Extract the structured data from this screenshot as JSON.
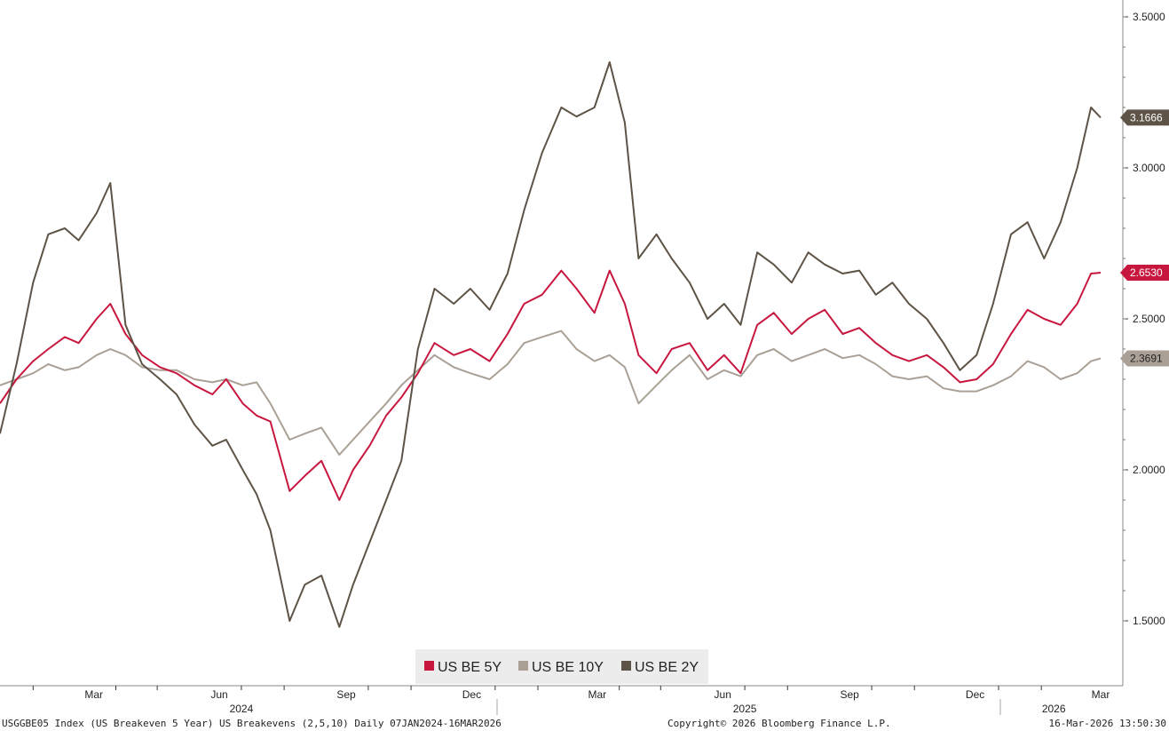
{
  "footer": {
    "left": "USGGBE05 Index (US Breakeven 5 Year) US Breakevens (2,5,10) Daily 07JAN2024-16MAR2026",
    "center": "Copyright© 2026 Bloomberg Finance L.P.",
    "right": "16-Mar-2026 13:50:30"
  },
  "chart_data": {
    "type": "line",
    "title": "",
    "xlabel": "",
    "ylabel": "",
    "x_range": [
      "2024-01-08",
      "2026-03-16"
    ],
    "ylim": [
      1.4,
      3.55
    ],
    "y_ticks": [
      "1.5000",
      "2.0000",
      "2.5000",
      "3.0000",
      "3.5000"
    ],
    "x_month_ticks": [
      "Mar",
      "Jun",
      "Sep",
      "Dec",
      "Mar",
      "Jun",
      "Sep",
      "Dec",
      "Mar"
    ],
    "x_year_labels": [
      "2024",
      "2025",
      "2026"
    ],
    "grid": false,
    "legend_position": "bottom-center",
    "series": [
      {
        "name": "US BE 5Y",
        "color": "#c8173f",
        "last_value": "2.6530",
        "points": [
          [
            "2024-01-08",
            2.22
          ],
          [
            "2024-01-20",
            2.3
          ],
          [
            "2024-02-01",
            2.36
          ],
          [
            "2024-02-12",
            2.4
          ],
          [
            "2024-02-24",
            2.44
          ],
          [
            "2024-03-05",
            2.42
          ],
          [
            "2024-03-18",
            2.5
          ],
          [
            "2024-03-28",
            2.55
          ],
          [
            "2024-04-08",
            2.45
          ],
          [
            "2024-04-20",
            2.38
          ],
          [
            "2024-05-03",
            2.34
          ],
          [
            "2024-05-15",
            2.32
          ],
          [
            "2024-05-28",
            2.28
          ],
          [
            "2024-06-10",
            2.25
          ],
          [
            "2024-06-20",
            2.3
          ],
          [
            "2024-07-02",
            2.22
          ],
          [
            "2024-07-12",
            2.18
          ],
          [
            "2024-07-22",
            2.16
          ],
          [
            "2024-08-05",
            1.93
          ],
          [
            "2024-08-16",
            1.98
          ],
          [
            "2024-08-28",
            2.03
          ],
          [
            "2024-09-10",
            1.9
          ],
          [
            "2024-09-20",
            2.0
          ],
          [
            "2024-10-02",
            2.08
          ],
          [
            "2024-10-14",
            2.18
          ],
          [
            "2024-10-25",
            2.24
          ],
          [
            "2024-11-06",
            2.32
          ],
          [
            "2024-11-18",
            2.42
          ],
          [
            "2024-12-02",
            2.38
          ],
          [
            "2024-12-14",
            2.4
          ],
          [
            "2024-12-28",
            2.36
          ],
          [
            "2025-01-10",
            2.45
          ],
          [
            "2025-01-22",
            2.55
          ],
          [
            "2025-02-04",
            2.58
          ],
          [
            "2025-02-18",
            2.66
          ],
          [
            "2025-03-01",
            2.6
          ],
          [
            "2025-03-14",
            2.52
          ],
          [
            "2025-03-25",
            2.66
          ],
          [
            "2025-04-05",
            2.55
          ],
          [
            "2025-04-15",
            2.38
          ],
          [
            "2025-04-28",
            2.32
          ],
          [
            "2025-05-09",
            2.4
          ],
          [
            "2025-05-22",
            2.42
          ],
          [
            "2025-06-04",
            2.33
          ],
          [
            "2025-06-16",
            2.38
          ],
          [
            "2025-06-28",
            2.32
          ],
          [
            "2025-07-10",
            2.48
          ],
          [
            "2025-07-22",
            2.52
          ],
          [
            "2025-08-04",
            2.45
          ],
          [
            "2025-08-16",
            2.5
          ],
          [
            "2025-08-28",
            2.53
          ],
          [
            "2025-09-10",
            2.45
          ],
          [
            "2025-09-22",
            2.47
          ],
          [
            "2025-10-04",
            2.42
          ],
          [
            "2025-10-16",
            2.38
          ],
          [
            "2025-10-28",
            2.36
          ],
          [
            "2025-11-10",
            2.38
          ],
          [
            "2025-11-22",
            2.34
          ],
          [
            "2025-12-04",
            2.29
          ],
          [
            "2025-12-16",
            2.3
          ],
          [
            "2025-12-28",
            2.35
          ],
          [
            "2026-01-10",
            2.45
          ],
          [
            "2026-01-22",
            2.53
          ],
          [
            "2026-02-03",
            2.5
          ],
          [
            "2026-02-15",
            2.48
          ],
          [
            "2026-02-27",
            2.55
          ],
          [
            "2026-03-09",
            2.65
          ],
          [
            "2026-03-16",
            2.653
          ]
        ]
      },
      {
        "name": "US BE 10Y",
        "color": "#aaa096",
        "last_value": "2.3691",
        "points": [
          [
            "2024-01-08",
            2.28
          ],
          [
            "2024-01-20",
            2.3
          ],
          [
            "2024-02-01",
            2.32
          ],
          [
            "2024-02-12",
            2.35
          ],
          [
            "2024-02-24",
            2.33
          ],
          [
            "2024-03-05",
            2.34
          ],
          [
            "2024-03-18",
            2.38
          ],
          [
            "2024-03-28",
            2.4
          ],
          [
            "2024-04-08",
            2.38
          ],
          [
            "2024-04-20",
            2.34
          ],
          [
            "2024-05-03",
            2.33
          ],
          [
            "2024-05-15",
            2.33
          ],
          [
            "2024-05-28",
            2.3
          ],
          [
            "2024-06-10",
            2.29
          ],
          [
            "2024-06-20",
            2.3
          ],
          [
            "2024-07-02",
            2.28
          ],
          [
            "2024-07-12",
            2.29
          ],
          [
            "2024-07-22",
            2.22
          ],
          [
            "2024-08-05",
            2.1
          ],
          [
            "2024-08-16",
            2.12
          ],
          [
            "2024-08-28",
            2.14
          ],
          [
            "2024-09-10",
            2.05
          ],
          [
            "2024-09-20",
            2.1
          ],
          [
            "2024-10-02",
            2.16
          ],
          [
            "2024-10-14",
            2.22
          ],
          [
            "2024-10-25",
            2.28
          ],
          [
            "2024-11-06",
            2.33
          ],
          [
            "2024-11-18",
            2.38
          ],
          [
            "2024-12-02",
            2.34
          ],
          [
            "2024-12-14",
            2.32
          ],
          [
            "2024-12-28",
            2.3
          ],
          [
            "2025-01-10",
            2.35
          ],
          [
            "2025-01-22",
            2.42
          ],
          [
            "2025-02-04",
            2.44
          ],
          [
            "2025-02-18",
            2.46
          ],
          [
            "2025-03-01",
            2.4
          ],
          [
            "2025-03-14",
            2.36
          ],
          [
            "2025-03-25",
            2.38
          ],
          [
            "2025-04-05",
            2.34
          ],
          [
            "2025-04-15",
            2.22
          ],
          [
            "2025-04-28",
            2.28
          ],
          [
            "2025-05-09",
            2.33
          ],
          [
            "2025-05-22",
            2.38
          ],
          [
            "2025-06-04",
            2.3
          ],
          [
            "2025-06-16",
            2.33
          ],
          [
            "2025-06-28",
            2.31
          ],
          [
            "2025-07-10",
            2.38
          ],
          [
            "2025-07-22",
            2.4
          ],
          [
            "2025-08-04",
            2.36
          ],
          [
            "2025-08-16",
            2.38
          ],
          [
            "2025-08-28",
            2.4
          ],
          [
            "2025-09-10",
            2.37
          ],
          [
            "2025-09-22",
            2.38
          ],
          [
            "2025-10-04",
            2.35
          ],
          [
            "2025-10-16",
            2.31
          ],
          [
            "2025-10-28",
            2.3
          ],
          [
            "2025-11-10",
            2.31
          ],
          [
            "2025-11-22",
            2.27
          ],
          [
            "2025-12-04",
            2.26
          ],
          [
            "2025-12-16",
            2.26
          ],
          [
            "2025-12-28",
            2.28
          ],
          [
            "2026-01-10",
            2.31
          ],
          [
            "2026-01-22",
            2.36
          ],
          [
            "2026-02-03",
            2.34
          ],
          [
            "2026-02-15",
            2.3
          ],
          [
            "2026-02-27",
            2.32
          ],
          [
            "2026-03-09",
            2.36
          ],
          [
            "2026-03-16",
            2.3691
          ]
        ]
      },
      {
        "name": "US BE 2Y",
        "color": "#5e5347",
        "last_value": "3.1666",
        "points": [
          [
            "2024-01-08",
            2.12
          ],
          [
            "2024-01-20",
            2.35
          ],
          [
            "2024-02-01",
            2.62
          ],
          [
            "2024-02-12",
            2.78
          ],
          [
            "2024-02-24",
            2.8
          ],
          [
            "2024-03-05",
            2.76
          ],
          [
            "2024-03-18",
            2.85
          ],
          [
            "2024-03-28",
            2.95
          ],
          [
            "2024-04-08",
            2.48
          ],
          [
            "2024-04-20",
            2.35
          ],
          [
            "2024-05-03",
            2.3
          ],
          [
            "2024-05-15",
            2.25
          ],
          [
            "2024-05-28",
            2.15
          ],
          [
            "2024-06-10",
            2.08
          ],
          [
            "2024-06-20",
            2.1
          ],
          [
            "2024-07-02",
            2.0
          ],
          [
            "2024-07-12",
            1.92
          ],
          [
            "2024-07-22",
            1.8
          ],
          [
            "2024-08-05",
            1.5
          ],
          [
            "2024-08-16",
            1.62
          ],
          [
            "2024-08-28",
            1.65
          ],
          [
            "2024-09-10",
            1.48
          ],
          [
            "2024-09-20",
            1.62
          ],
          [
            "2024-10-02",
            1.76
          ],
          [
            "2024-10-14",
            1.9
          ],
          [
            "2024-10-25",
            2.03
          ],
          [
            "2024-11-06",
            2.4
          ],
          [
            "2024-11-18",
            2.6
          ],
          [
            "2024-12-02",
            2.55
          ],
          [
            "2024-12-14",
            2.6
          ],
          [
            "2024-12-28",
            2.53
          ],
          [
            "2025-01-10",
            2.65
          ],
          [
            "2025-01-22",
            2.86
          ],
          [
            "2025-02-04",
            3.05
          ],
          [
            "2025-02-18",
            3.2
          ],
          [
            "2025-03-01",
            3.17
          ],
          [
            "2025-03-14",
            3.2
          ],
          [
            "2025-03-25",
            3.35
          ],
          [
            "2025-04-05",
            3.15
          ],
          [
            "2025-04-15",
            2.7
          ],
          [
            "2025-04-28",
            2.78
          ],
          [
            "2025-05-09",
            2.7
          ],
          [
            "2025-05-22",
            2.62
          ],
          [
            "2025-06-04",
            2.5
          ],
          [
            "2025-06-16",
            2.55
          ],
          [
            "2025-06-28",
            2.48
          ],
          [
            "2025-07-10",
            2.72
          ],
          [
            "2025-07-22",
            2.68
          ],
          [
            "2025-08-04",
            2.62
          ],
          [
            "2025-08-16",
            2.72
          ],
          [
            "2025-08-28",
            2.68
          ],
          [
            "2025-09-10",
            2.65
          ],
          [
            "2025-09-22",
            2.66
          ],
          [
            "2025-10-04",
            2.58
          ],
          [
            "2025-10-16",
            2.62
          ],
          [
            "2025-10-28",
            2.55
          ],
          [
            "2025-11-10",
            2.5
          ],
          [
            "2025-11-22",
            2.42
          ],
          [
            "2025-12-04",
            2.33
          ],
          [
            "2025-12-16",
            2.38
          ],
          [
            "2025-12-28",
            2.55
          ],
          [
            "2026-01-10",
            2.78
          ],
          [
            "2026-01-22",
            2.82
          ],
          [
            "2026-02-03",
            2.7
          ],
          [
            "2026-02-15",
            2.82
          ],
          [
            "2026-02-27",
            3.0
          ],
          [
            "2026-03-09",
            3.2
          ],
          [
            "2026-03-16",
            3.1666
          ]
        ]
      }
    ]
  }
}
